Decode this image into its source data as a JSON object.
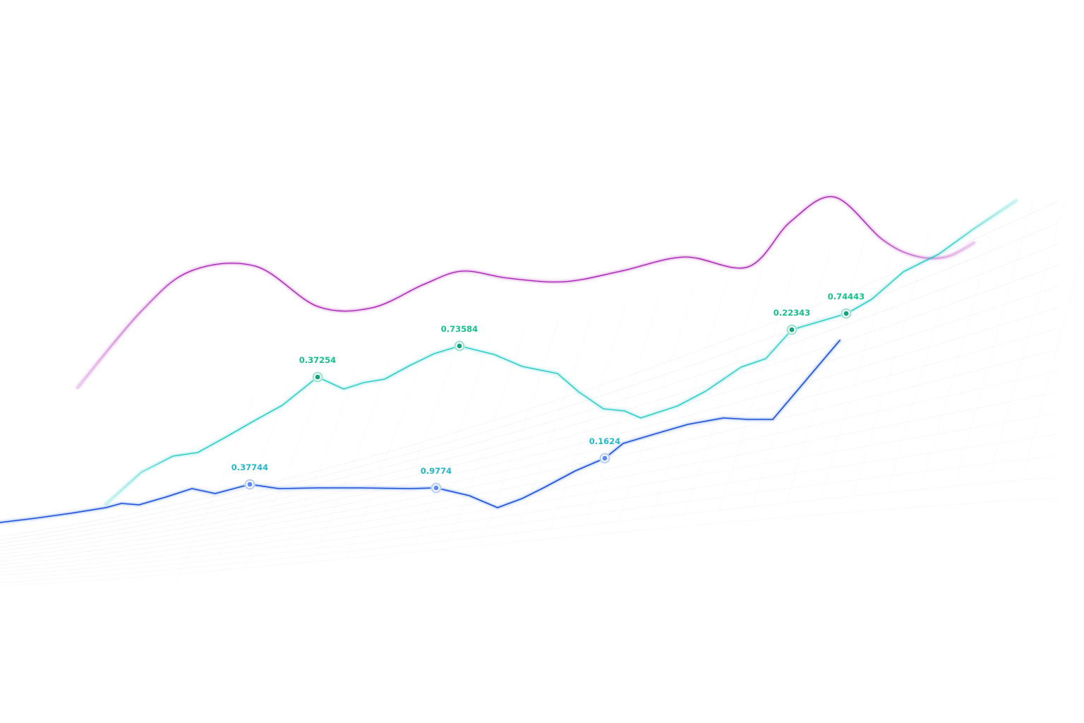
{
  "colors": {
    "background": "#ffffff",
    "magenta": "#a21caf",
    "teal": "#22c7c0",
    "blue": "#1d4fd8",
    "label_green": "#14c08a",
    "label_teal": "#22b8c8",
    "mesh": "#c9cdd8"
  },
  "chart_data": {
    "type": "line",
    "title": "",
    "xlabel": "",
    "ylabel": "",
    "grid": false,
    "legend": "none",
    "xlim": [
      0,
      1536
    ],
    "ylim": [
      0,
      1024
    ],
    "series": [
      {
        "key": "magenta",
        "color": "#a21caf",
        "curve": "smooth",
        "fade_ends": true,
        "points": [
          [
            110,
            475
          ],
          [
            200,
            583
          ],
          [
            270,
            640
          ],
          [
            362,
            647
          ],
          [
            450,
            590
          ],
          [
            527,
            588
          ],
          [
            600,
            621
          ],
          [
            655,
            640
          ],
          [
            720,
            630
          ],
          [
            800,
            625
          ],
          [
            880,
            640
          ],
          [
            970,
            660
          ],
          [
            1060,
            646
          ],
          [
            1120,
            710
          ],
          [
            1182,
            745
          ],
          [
            1250,
            685
          ],
          [
            1295,
            662
          ],
          [
            1340,
            660
          ],
          [
            1380,
            680
          ]
        ],
        "markers": []
      },
      {
        "key": "teal",
        "color": "#22c7c0",
        "curve": "linear",
        "fade_ends": true,
        "points": [
          [
            150,
            310
          ],
          [
            200,
            355
          ],
          [
            245,
            378
          ],
          [
            280,
            383
          ],
          [
            320,
            405
          ],
          [
            360,
            428
          ],
          [
            400,
            450
          ],
          [
            450,
            490
          ],
          [
            487,
            473
          ],
          [
            515,
            482
          ],
          [
            545,
            487
          ],
          [
            580,
            506
          ],
          [
            615,
            523
          ],
          [
            651,
            534
          ],
          [
            700,
            522
          ],
          [
            740,
            505
          ],
          [
            790,
            495
          ],
          [
            820,
            469
          ],
          [
            855,
            445
          ],
          [
            885,
            442
          ],
          [
            908,
            432
          ],
          [
            960,
            449
          ],
          [
            1000,
            470
          ],
          [
            1050,
            504
          ],
          [
            1085,
            516
          ],
          [
            1122,
            557
          ],
          [
            1200,
            580
          ],
          [
            1235,
            600
          ],
          [
            1280,
            639
          ],
          [
            1330,
            664
          ],
          [
            1380,
            700
          ],
          [
            1440,
            740
          ]
        ],
        "markers": [
          {
            "x": 450,
            "y": 490,
            "label": "0.37254",
            "label_color": "#14c08a"
          },
          {
            "x": 651,
            "y": 534,
            "label": "0.73584",
            "label_color": "#14c08a"
          },
          {
            "x": 1122,
            "y": 557,
            "label": "0.22343",
            "label_color": "#14c08a"
          },
          {
            "x": 1199,
            "y": 580,
            "label": "0.74443",
            "label_color": "#14c08a"
          }
        ]
      },
      {
        "key": "blue",
        "color": "#1d4fd8",
        "curve": "linear",
        "fade_ends": false,
        "points": [
          [
            0,
            284
          ],
          [
            50,
            290
          ],
          [
            100,
            297
          ],
          [
            150,
            305
          ],
          [
            172,
            311
          ],
          [
            197,
            309
          ],
          [
            235,
            320
          ],
          [
            272,
            332
          ],
          [
            305,
            325
          ],
          [
            354,
            338
          ],
          [
            395,
            332
          ],
          [
            450,
            333
          ],
          [
            510,
            333
          ],
          [
            580,
            332
          ],
          [
            618,
            333
          ],
          [
            665,
            322
          ],
          [
            705,
            305
          ],
          [
            740,
            318
          ],
          [
            770,
            333
          ],
          [
            815,
            357
          ],
          [
            857,
            375
          ],
          [
            883,
            396
          ],
          [
            930,
            410
          ],
          [
            975,
            423
          ],
          [
            1025,
            432
          ],
          [
            1060,
            430
          ],
          [
            1095,
            430
          ],
          [
            1190,
            542
          ]
        ],
        "markers": [
          {
            "x": 354,
            "y": 338,
            "label": "0.37744",
            "label_color": "#22b8c8"
          },
          {
            "x": 618,
            "y": 333,
            "label": "0.9774",
            "label_color": "#22b8c8"
          },
          {
            "x": 857,
            "y": 375,
            "label": "0.1624",
            "label_color": "#22b8c8"
          }
        ]
      }
    ]
  }
}
